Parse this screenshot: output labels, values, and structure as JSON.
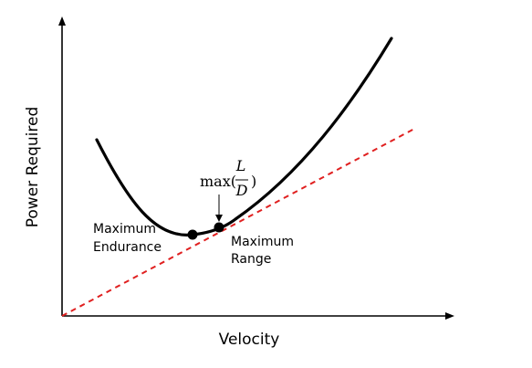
{
  "axes": {
    "x_label": "Velocity",
    "y_label": "Power Required"
  },
  "annotations": {
    "max_endurance": [
      "Maximum",
      "Endurance"
    ],
    "max_range": [
      "Maximum",
      "Range"
    ],
    "max_ld": {
      "func": "max(",
      "numerator": "L",
      "denominator": "D",
      "close": ")"
    }
  },
  "colors": {
    "curve": "#000000",
    "tangent_line": "#e02020",
    "axes": "#000000"
  }
}
